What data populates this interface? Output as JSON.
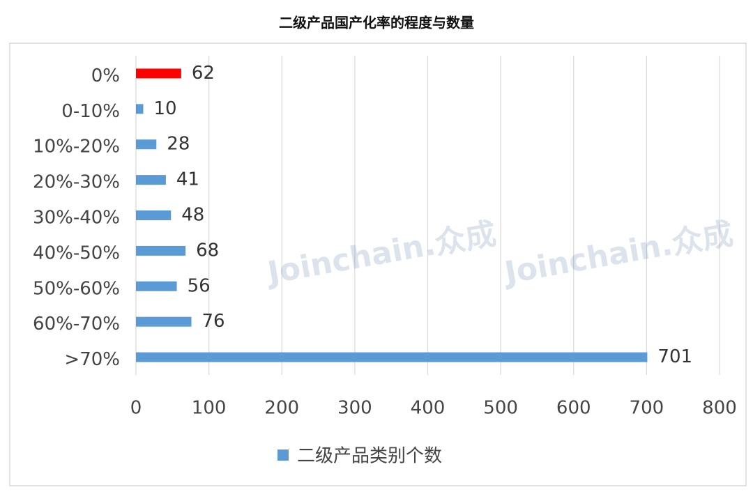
{
  "chart_data": {
    "type": "hbar",
    "title": "二级产品国产化率的程度与数量",
    "categories": [
      "0%",
      "0-10%",
      "10%-20%",
      "20%-30%",
      "30%-40%",
      "40%-50%",
      "50%-60%",
      "60%-70%",
      ">70%"
    ],
    "series": [
      {
        "name": "二级产品类别个数",
        "color": "#5b9bd5",
        "colors": [
          "#ff0000",
          "#5b9bd5",
          "#5b9bd5",
          "#5b9bd5",
          "#5b9bd5",
          "#5b9bd5",
          "#5b9bd5",
          "#5b9bd5",
          "#5b9bd5"
        ],
        "values": [
          62,
          10,
          28,
          41,
          48,
          68,
          56,
          76,
          701
        ]
      }
    ],
    "xlim": [
      0,
      800
    ],
    "xticks": [
      0,
      100,
      200,
      300,
      400,
      500,
      600,
      700,
      800
    ],
    "grid": true,
    "legend": "bottom",
    "watermark": "Joinchain.众成"
  }
}
